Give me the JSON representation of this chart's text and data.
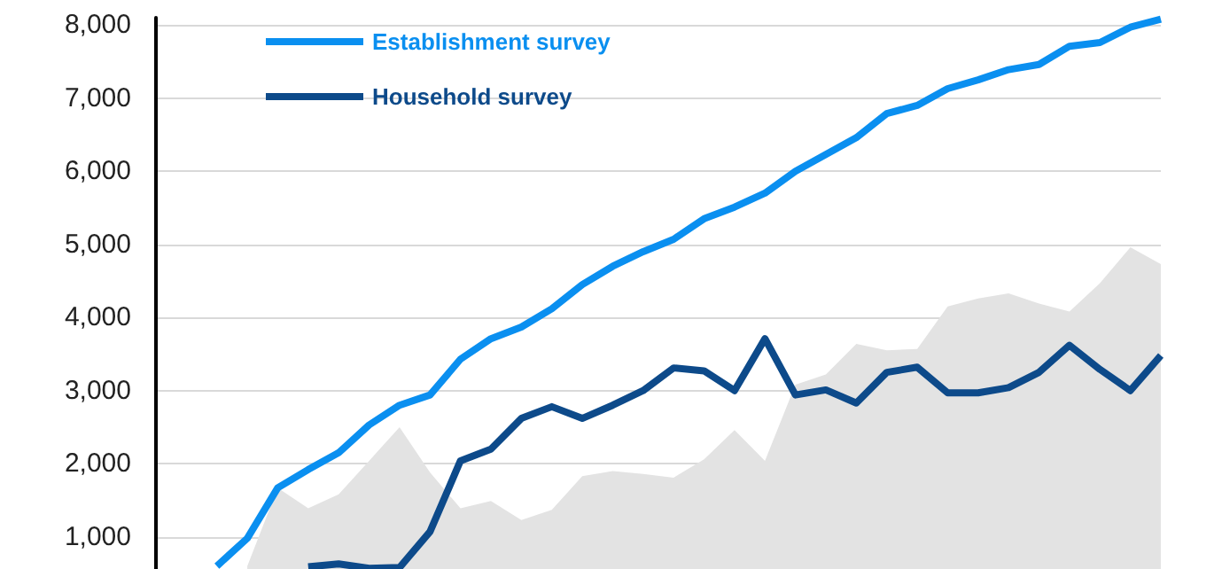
{
  "chart_data": {
    "type": "line",
    "categories": [
      null,
      null,
      null,
      null,
      null,
      null,
      null,
      null,
      null,
      null,
      null,
      null,
      null,
      null,
      null,
      null,
      null,
      null,
      null,
      null,
      null,
      null,
      null,
      null,
      null,
      null,
      null,
      null,
      null,
      null,
      null,
      null,
      null,
      null
    ],
    "series": [
      {
        "type": "area",
        "color": "#e3e3e3",
        "values": [
          null,
          null,
          null,
          600,
          1670,
          1390,
          1580,
          2040,
          2500,
          1880,
          1390,
          1490,
          1230,
          1370,
          1830,
          1900,
          1860,
          1810,
          2060,
          2460,
          2040,
          3080,
          3220,
          3640,
          3550,
          3570,
          4150,
          4260,
          4330,
          4190,
          4080,
          4470,
          4960,
          4730
        ]
      },
      {
        "name": "Establishment survey",
        "color": "#0a8ff0",
        "values": [
          null,
          null,
          600,
          980,
          1670,
          1920,
          2150,
          2530,
          2800,
          2940,
          3430,
          3710,
          3870,
          4120,
          4450,
          4700,
          4900,
          5070,
          5350,
          5510,
          5700,
          6000,
          6230,
          6460,
          6790,
          6900,
          7130,
          7250,
          7390,
          7460,
          7710,
          7760,
          7970,
          8080
        ]
      },
      {
        "name": "Household survey",
        "color": "#0d4a8a",
        "values": [
          null,
          null,
          null,
          null,
          null,
          590,
          630,
          570,
          580,
          1070,
          2040,
          2200,
          2620,
          2780,
          2620,
          2800,
          3000,
          3310,
          3270,
          3000,
          3710,
          2940,
          3010,
          2830,
          3250,
          3320,
          2970,
          2970,
          3040,
          3250,
          3620,
          3290,
          3000,
          3480
        ]
      }
    ],
    "ylim": [
      560,
      8100
    ],
    "yticks": [
      {
        "value": 1000,
        "label": "1,000"
      },
      {
        "value": 2000,
        "label": "2,000"
      },
      {
        "value": 3000,
        "label": "3,000"
      },
      {
        "value": 4000,
        "label": "4,000"
      },
      {
        "value": 5000,
        "label": "5,000"
      },
      {
        "value": 6000,
        "label": "6,000"
      },
      {
        "value": 7000,
        "label": "7,000"
      },
      {
        "value": 8000,
        "label": "8,000"
      }
    ],
    "grid": "y",
    "legend": "top left",
    "tick_labels": "y",
    "marker": "none"
  }
}
